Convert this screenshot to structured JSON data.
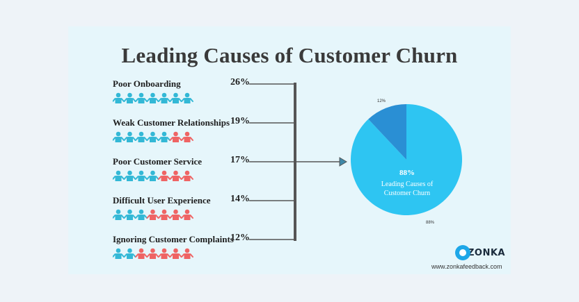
{
  "title": "Leading Causes of Customer Churn",
  "chart_data": [
    {
      "type": "bar",
      "categories": [
        "Poor Onboarding",
        "Weak Customer Relationships",
        "Poor Customer Service",
        "Difficult User Experience",
        "Ignoring Customer Complaints"
      ],
      "values": [
        26,
        19,
        17,
        14,
        12
      ],
      "value_labels": [
        "26%",
        "19%",
        "17%",
        "14%",
        "12%"
      ],
      "people_per_row": 7,
      "red_people_counts": [
        0,
        2,
        3,
        4,
        5
      ]
    },
    {
      "type": "pie",
      "slices": [
        {
          "label": "88%",
          "value": 88
        },
        {
          "label": "12%",
          "value": 12
        }
      ],
      "center_value": "88%",
      "center_text": [
        "Leading Causes of",
        "Customer Churn"
      ]
    }
  ],
  "colors": {
    "background": "#eef3f8",
    "card": "#e6f6fb",
    "title": "#3a3a3a",
    "person_blue": "#33b8d6",
    "person_red": "#ef6464",
    "pie_main": "#2ec5f2",
    "pie_minor": "#2a8fd4",
    "connector": "#555555"
  },
  "logo": {
    "text": "ZONKA",
    "icon": "zonka-logo-icon"
  },
  "website": "www.zonkafeedback.com"
}
